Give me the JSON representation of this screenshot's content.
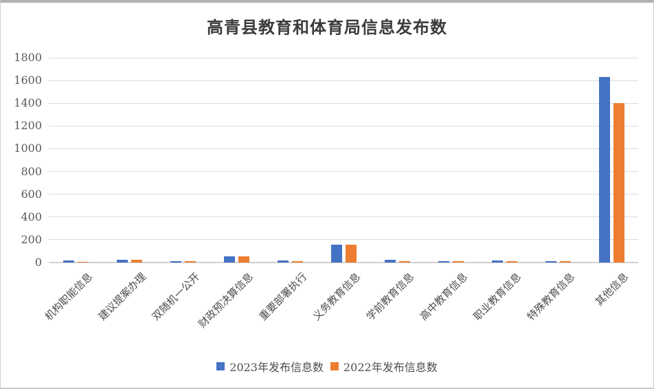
{
  "chart_data": {
    "type": "bar",
    "title": "高青县教育和体育局信息发布数",
    "categories": [
      "机构职能信息",
      "建议提案办理",
      "双随机一公开",
      "财政预决算信息",
      "重要部署执行",
      "义务教育信息",
      "学前教育信息",
      "高中教育信息",
      "职业教育信息",
      "特殊教育信息",
      "其他信息"
    ],
    "series": [
      {
        "name": "2023年发布信息数",
        "color": "#4472C4",
        "values": [
          20,
          25,
          14,
          55,
          18,
          160,
          25,
          15,
          18,
          15,
          1630
        ]
      },
      {
        "name": "2022年发布信息数",
        "color": "#ED7D31",
        "values": [
          8,
          22,
          12,
          55,
          14,
          160,
          14,
          12,
          15,
          13,
          1400
        ]
      }
    ],
    "ylim": [
      0,
      1800
    ],
    "ytick_step": 200,
    "grid": true,
    "legend_position": "bottom",
    "xlabel": "",
    "ylabel": ""
  },
  "colors": {
    "gridline": "#dcdcdc",
    "axis_line": "#d2d0d0",
    "tick_text": "#595959",
    "label_text": "#4d4d4d",
    "title_text": "#3b3b3b"
  }
}
